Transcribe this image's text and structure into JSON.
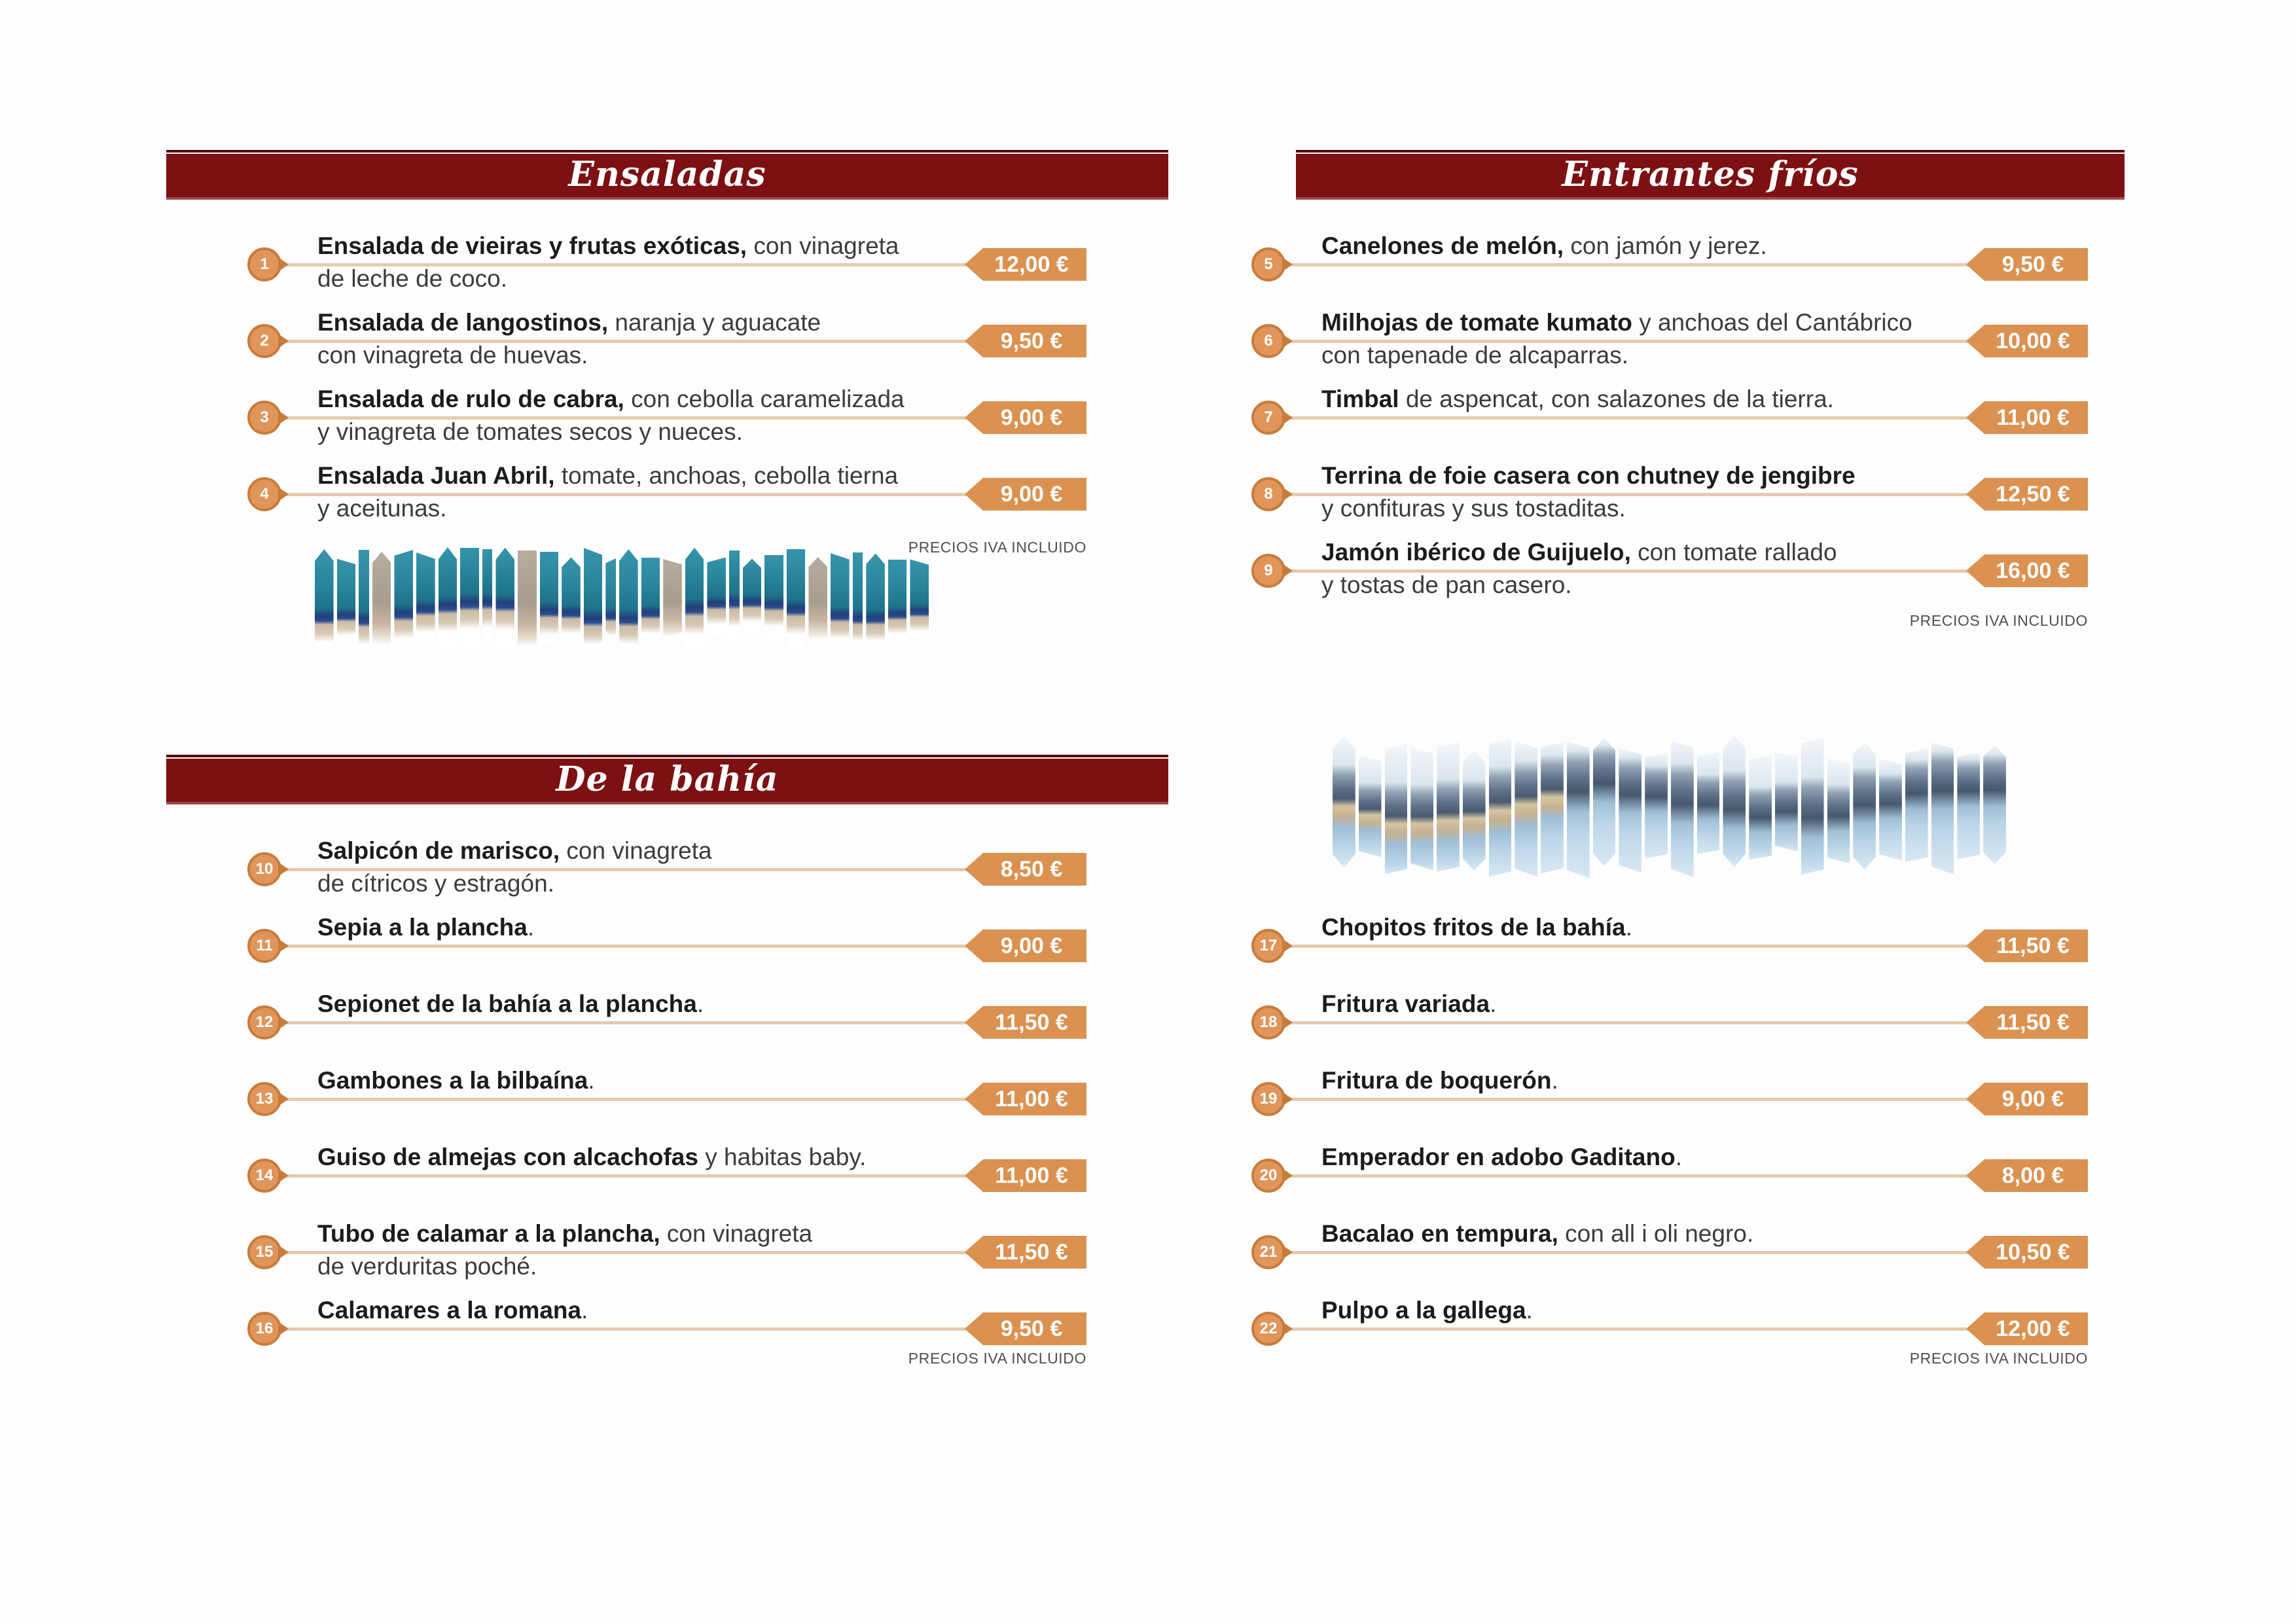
{
  "notes": {
    "iva": "PRECIOS IVA INCLUIDO"
  },
  "colors": {
    "header_maroon": "#7c1013",
    "price_tag_orange": "#db9150",
    "badge_orange": "#e0955a",
    "badge_border_orange": "#c87c3c",
    "leader_line_tan": "#e4cbad"
  },
  "decor_images": {
    "ensaladas": "beach-parasols-sliced-photo-collage",
    "bottom_right": "coastal-bay-mountains-sliced-photo-collage"
  },
  "sections": [
    {
      "id": "ensaladas",
      "title": "Ensaladas",
      "items": [
        {
          "num": "1",
          "name": "Ensalada de vieiras y frutas exóticas,",
          "desc": " con vinagreta\nde leche de coco.",
          "price": "12,00 €"
        },
        {
          "num": "2",
          "name": "Ensalada de langostinos,",
          "desc": " naranja y aguacate\ncon vinagreta de huevas.",
          "price": "9,50 €"
        },
        {
          "num": "3",
          "name": "Ensalada de rulo de cabra,",
          "desc": " con cebolla caramelizada\ny vinagreta de tomates secos y nueces.",
          "price": "9,00 €"
        },
        {
          "num": "4",
          "name": "Ensalada Juan Abril,",
          "desc": " tomate, anchoas, cebolla tierna\ny aceitunas.",
          "price": "9,00 €"
        }
      ]
    },
    {
      "id": "entrantes-frios",
      "title": "Entrantes fríos",
      "items": [
        {
          "num": "5",
          "name": "Canelones de melón,",
          "desc": " con jamón y jerez.",
          "price": "9,50 €"
        },
        {
          "num": "6",
          "name": "Milhojas de tomate kumato",
          "desc": " y anchoas del Cantábrico\ncon tapenade de alcaparras.",
          "price": "10,00 €"
        },
        {
          "num": "7",
          "name": "Timbal",
          "desc": " de aspencat, con salazones de la tierra.",
          "price": "11,00 €"
        },
        {
          "num": "8",
          "name": "Terrina de foie casera con chutney de jengibre",
          "desc": "\ny confituras y sus tostaditas.",
          "price": "12,50 €"
        },
        {
          "num": "9",
          "name": "Jamón ibérico de Guijuelo,",
          "desc": " con tomate rallado\ny tostas de pan casero.",
          "price": "16,00 €"
        }
      ]
    },
    {
      "id": "de-la-bahia",
      "title": "De la bahía",
      "items": [
        {
          "num": "10",
          "name": "Salpicón de marisco,",
          "desc": " con vinagreta\nde cítricos y estragón.",
          "price": "8,50 €"
        },
        {
          "num": "11",
          "name": "Sepia a la plancha",
          "desc": ".",
          "price": "9,00 €"
        },
        {
          "num": "12",
          "name": "Sepionet de la bahía a la plancha",
          "desc": ".",
          "price": "11,50 €"
        },
        {
          "num": "13",
          "name": "Gambones a la bilbaína",
          "desc": ".",
          "price": "11,00 €"
        },
        {
          "num": "14",
          "name": "Guiso de almejas con alcachofas",
          "desc": " y habitas baby.",
          "price": "11,00 €"
        },
        {
          "num": "15",
          "name": "Tubo de calamar a la plancha,",
          "desc": " con vinagreta\nde verduritas poché.",
          "price": "11,50 €"
        },
        {
          "num": "16",
          "name": "Calamares a la romana",
          "desc": ".",
          "price": "9,50 €"
        }
      ]
    },
    {
      "id": "fritos-de-la-bahia",
      "title": "",
      "items": [
        {
          "num": "17",
          "name": "Chopitos fritos de la bahía",
          "desc": ".",
          "price": "11,50 €"
        },
        {
          "num": "18",
          "name": "Fritura variada",
          "desc": ".",
          "price": "11,50 €"
        },
        {
          "num": "19",
          "name": "Fritura de boquerón",
          "desc": ".",
          "price": "9,00 €"
        },
        {
          "num": "20",
          "name": "Emperador en adobo Gaditano",
          "desc": ".",
          "price": "8,00 €"
        },
        {
          "num": "21",
          "name": "Bacalao en tempura,",
          "desc": " con all i oli negro.",
          "price": "10,50 €"
        },
        {
          "num": "22",
          "name": "Pulpo a la gallega",
          "desc": ".",
          "price": "12,00 €"
        }
      ]
    }
  ]
}
